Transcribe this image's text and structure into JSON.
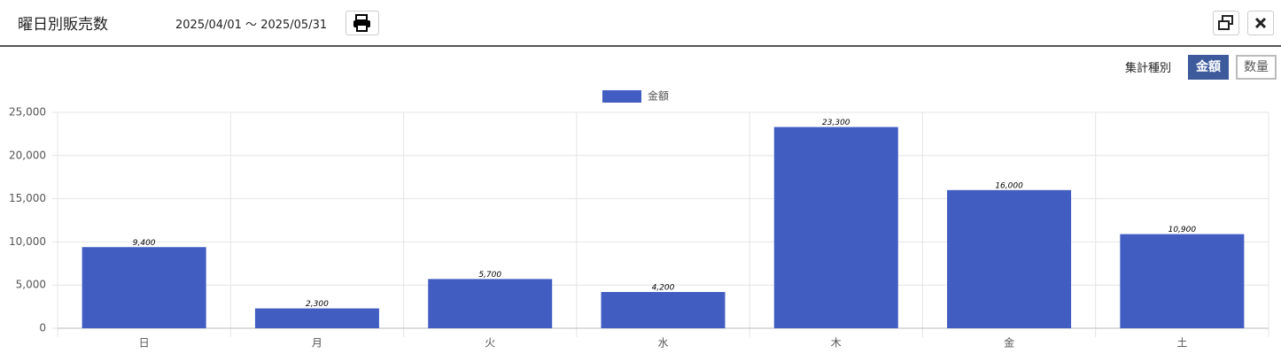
{
  "header": {
    "title": "曜日別販売数",
    "date_range": "2025/04/01 ～ 2025/05/31"
  },
  "toggle": {
    "label": "集計種別",
    "options": [
      "金額",
      "数量"
    ]
  },
  "chart_data": {
    "type": "bar",
    "categories": [
      "日",
      "月",
      "火",
      "水",
      "木",
      "金",
      "土"
    ],
    "series": [
      {
        "name": "金額",
        "color": "#415dc2",
        "values": [
          9400,
          2300,
          5700,
          4200,
          23300,
          16000,
          10900
        ],
        "value_labels": [
          "9,400",
          "2,300",
          "5,700",
          "4,200",
          "23,300",
          "16,000",
          "10,900"
        ]
      }
    ],
    "ylim": [
      0,
      25000
    ],
    "yticks": [
      0,
      {
        "value": 5000,
        "label": "5,000"
      },
      {
        "value": 10000,
        "label": "10,000"
      },
      {
        "value": 15000,
        "label": "15,000"
      },
      {
        "value": 20000,
        "label": "20,000"
      },
      {
        "value": 25000,
        "label": "25,000"
      }
    ],
    "grid": true,
    "legend": "top"
  }
}
